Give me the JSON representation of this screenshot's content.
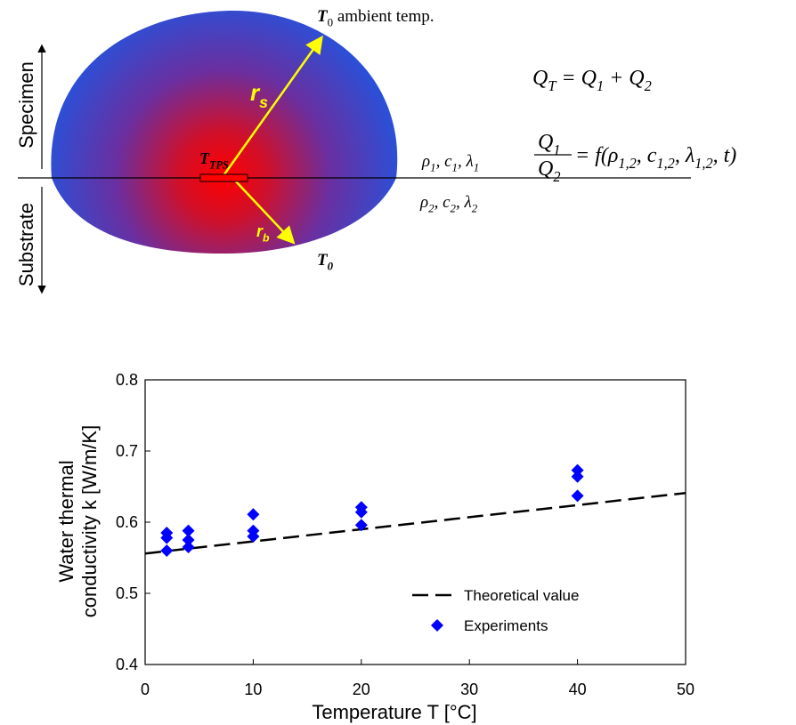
{
  "diagram": {
    "ambient_label": [
      {
        "text": "T"
      },
      {
        "sub": "0"
      },
      {
        "text": " ambient temp."
      }
    ],
    "bottom_label": [
      {
        "text": "T"
      },
      {
        "sub": "0"
      }
    ],
    "sensor_label": [
      {
        "text": "T"
      },
      {
        "sub": "TPS"
      }
    ],
    "specimen_radius": [
      {
        "text": "r"
      },
      {
        "sub": "s"
      }
    ],
    "substrate_radius": [
      {
        "text": "r"
      },
      {
        "sub": "b"
      }
    ],
    "specimen": "Specimen",
    "substrate": "Substrate",
    "props_top": [
      {
        "text": "ρ"
      },
      {
        "sub": "1"
      },
      {
        "text": ", c"
      },
      {
        "sub": "1"
      },
      {
        "text": ", λ"
      },
      {
        "sub": "1"
      }
    ],
    "props_bottom": [
      {
        "text": "ρ"
      },
      {
        "sub": "2"
      },
      {
        "text": ", c"
      },
      {
        "sub": "2"
      },
      {
        "text": ", λ"
      },
      {
        "sub": "2"
      }
    ],
    "eq1": [
      {
        "text": "Q"
      },
      {
        "sub": "T"
      },
      {
        "text": " = Q"
      },
      {
        "sub": "1"
      },
      {
        "text": " + Q"
      },
      {
        "sub": "2"
      }
    ],
    "eq2_numerator": [
      {
        "text": "Q"
      },
      {
        "sub": "1"
      }
    ],
    "eq2_denominator": [
      {
        "text": "Q"
      },
      {
        "sub": "2"
      }
    ],
    "eq2_rhs": [
      {
        "text": "= f(ρ"
      },
      {
        "sub": "1,2"
      },
      {
        "text": ", c"
      },
      {
        "sub": "1,2"
      },
      {
        "text": ", λ"
      },
      {
        "sub": "1,2"
      },
      {
        "text": ", t)"
      }
    ]
  },
  "chart_data": {
    "type": "scatter",
    "x_label": "Temperature T [°C]",
    "y_label": [
      "Water thermal",
      "conductivity k [W/m/K]"
    ],
    "xlim": [
      0,
      50
    ],
    "ylim": [
      0.4,
      0.8
    ],
    "xticks": [
      0,
      10,
      20,
      30,
      40,
      50
    ],
    "yticks": [
      0.4,
      0.5,
      0.6,
      0.7,
      0.8
    ],
    "series": [
      {
        "name": "Theoretical value",
        "kind": "dashed-line",
        "color": "#000000",
        "x": [
          0,
          50
        ],
        "values": [
          0.556,
          0.641
        ]
      },
      {
        "name": "Experiments",
        "kind": "diamond",
        "color": "#0000ff",
        "x": [
          2,
          2,
          2,
          4,
          4,
          4,
          10,
          10,
          10,
          20,
          20,
          20,
          40,
          40,
          40
        ],
        "values": [
          0.585,
          0.578,
          0.56,
          0.588,
          0.575,
          0.565,
          0.611,
          0.588,
          0.58,
          0.621,
          0.614,
          0.596,
          0.673,
          0.664,
          0.637
        ]
      }
    ]
  }
}
